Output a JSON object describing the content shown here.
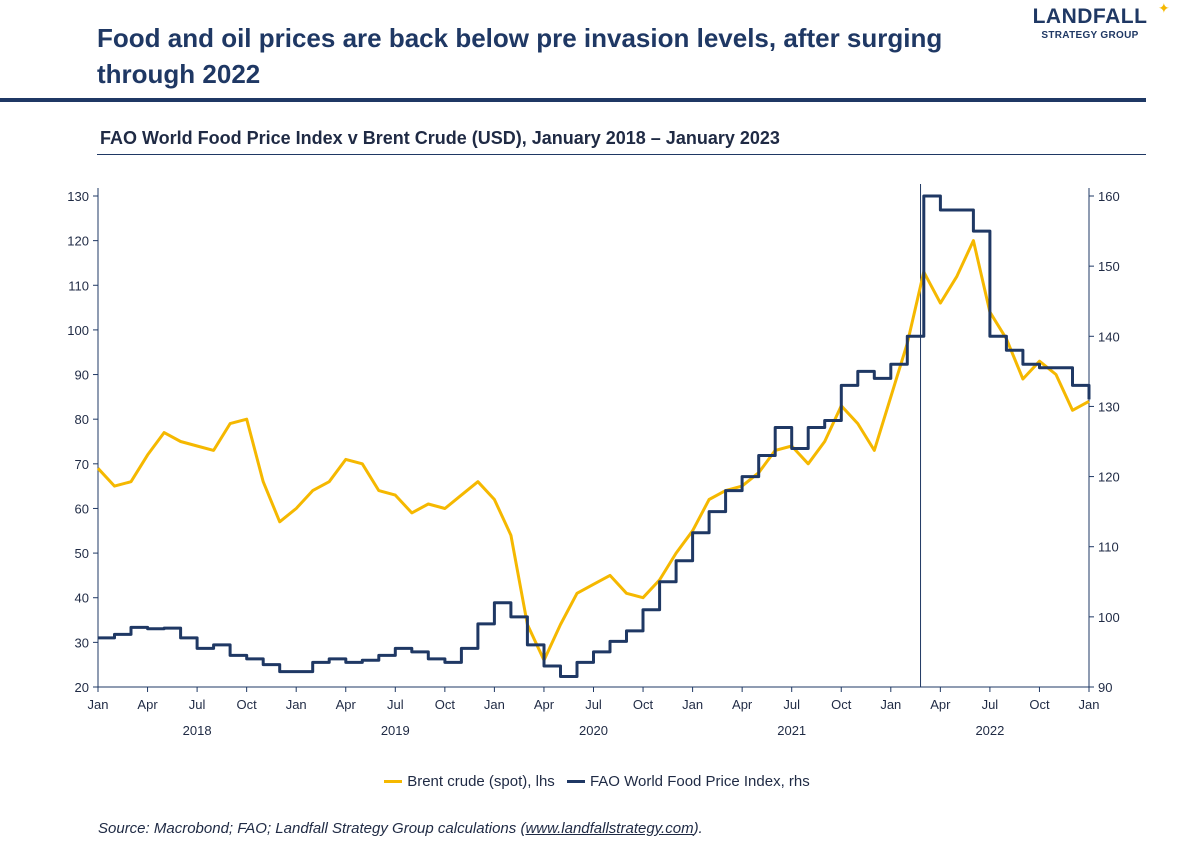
{
  "header": {
    "title": "Food and oil prices are back below pre invasion levels, after surging through 2022",
    "logo_brand": "LANDFALL",
    "logo_sub": "STRATEGY GROUP"
  },
  "footer": {
    "source_prefix": "Source: Macrobond; FAO; Landfall Strategy  Group calculations (",
    "source_link": "www.landfallstrategy.com",
    "source_suffix": ")."
  },
  "colors": {
    "brent": "#f5b800",
    "fao": "#1f3864",
    "axis": "#1f3864"
  },
  "chart_data": {
    "type": "line",
    "title": "FAO World Food Price Index v Brent Crude (USD), January 2018 – January 2023",
    "x_month_labels": [
      "Jan",
      "Apr",
      "Jul",
      "Oct",
      "Jan",
      "Apr",
      "Jul",
      "Oct",
      "Jan",
      "Apr",
      "Jul",
      "Oct",
      "Jan",
      "Apr",
      "Jul",
      "Oct",
      "Jan",
      "Apr",
      "Jul",
      "Oct",
      "Jan"
    ],
    "x_year_labels": [
      "2018",
      "2019",
      "2020",
      "2021",
      "2022"
    ],
    "xlim": [
      "2018-01",
      "2023-01"
    ],
    "y_left": {
      "lim": [
        20,
        130
      ],
      "ticks": [
        20,
        30,
        40,
        50,
        60,
        70,
        80,
        90,
        100,
        110,
        120,
        130
      ]
    },
    "y_right": {
      "lim": [
        90,
        160
      ],
      "ticks": [
        90,
        100,
        110,
        120,
        130,
        140,
        150,
        160
      ]
    },
    "annotation_line": "2022-02",
    "series": [
      {
        "name": "Brent crude (spot), lhs",
        "axis": "left",
        "months": [
          "2018-01",
          "2018-02",
          "2018-03",
          "2018-04",
          "2018-05",
          "2018-06",
          "2018-07",
          "2018-08",
          "2018-09",
          "2018-10",
          "2018-11",
          "2018-12",
          "2019-01",
          "2019-02",
          "2019-03",
          "2019-04",
          "2019-05",
          "2019-06",
          "2019-07",
          "2019-08",
          "2019-09",
          "2019-10",
          "2019-11",
          "2019-12",
          "2020-01",
          "2020-02",
          "2020-03",
          "2020-04",
          "2020-05",
          "2020-06",
          "2020-07",
          "2020-08",
          "2020-09",
          "2020-10",
          "2020-11",
          "2020-12",
          "2021-01",
          "2021-02",
          "2021-03",
          "2021-04",
          "2021-05",
          "2021-06",
          "2021-07",
          "2021-08",
          "2021-09",
          "2021-10",
          "2021-11",
          "2021-12",
          "2022-01",
          "2022-02",
          "2022-03",
          "2022-04",
          "2022-05",
          "2022-06",
          "2022-07",
          "2022-08",
          "2022-09",
          "2022-10",
          "2022-11",
          "2022-12",
          "2023-01"
        ],
        "values": [
          69,
          65,
          66,
          72,
          77,
          75,
          74,
          73,
          79,
          80,
          66,
          57,
          60,
          64,
          66,
          71,
          70,
          64,
          63,
          59,
          61,
          60,
          63,
          66,
          62,
          54,
          34,
          26,
          34,
          41,
          43,
          45,
          41,
          40,
          44,
          50,
          55,
          62,
          64,
          65,
          68,
          73,
          74,
          70,
          75,
          83,
          79,
          73,
          85,
          97,
          113,
          106,
          112,
          120,
          104,
          98,
          89,
          93,
          90,
          82,
          84
        ]
      },
      {
        "name": "FAO World Food Price Index, rhs",
        "axis": "right",
        "months": [
          "2018-01",
          "2018-02",
          "2018-03",
          "2018-04",
          "2018-05",
          "2018-06",
          "2018-07",
          "2018-08",
          "2018-09",
          "2018-10",
          "2018-11",
          "2018-12",
          "2019-01",
          "2019-02",
          "2019-03",
          "2019-04",
          "2019-05",
          "2019-06",
          "2019-07",
          "2019-08",
          "2019-09",
          "2019-10",
          "2019-11",
          "2019-12",
          "2020-01",
          "2020-02",
          "2020-03",
          "2020-04",
          "2020-05",
          "2020-06",
          "2020-07",
          "2020-08",
          "2020-09",
          "2020-10",
          "2020-11",
          "2020-12",
          "2021-01",
          "2021-02",
          "2021-03",
          "2021-04",
          "2021-05",
          "2021-06",
          "2021-07",
          "2021-08",
          "2021-09",
          "2021-10",
          "2021-11",
          "2021-12",
          "2022-01",
          "2022-02",
          "2022-03",
          "2022-04",
          "2022-05",
          "2022-06",
          "2022-07",
          "2022-08",
          "2022-09",
          "2022-10",
          "2022-11",
          "2022-12",
          "2023-01"
        ],
        "values": [
          97,
          97.5,
          98.5,
          98.3,
          98.4,
          97,
          95.5,
          96,
          94.5,
          94,
          93.2,
          92.2,
          92.2,
          93.5,
          94,
          93.5,
          93.8,
          94.5,
          95.5,
          95,
          94,
          93.5,
          95.5,
          99,
          102,
          100,
          96,
          93,
          91.5,
          93.5,
          95,
          96.5,
          98,
          101,
          105,
          108,
          112,
          115,
          118,
          120,
          123,
          127,
          124,
          127,
          128,
          133,
          135,
          134,
          136,
          140,
          160,
          158,
          158,
          155,
          140,
          138,
          136,
          135.5,
          135.5,
          133,
          131
        ]
      }
    ],
    "legend": "bottom"
  }
}
